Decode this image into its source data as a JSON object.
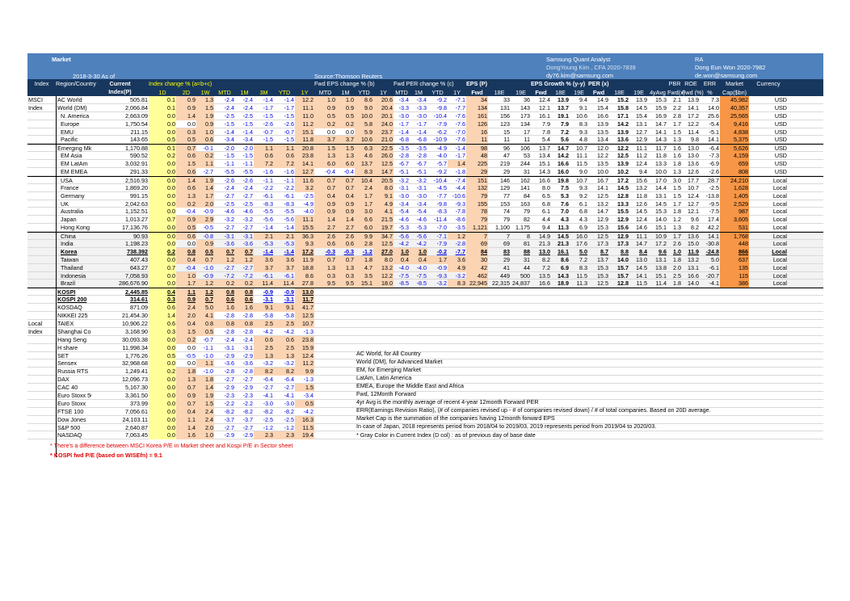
{
  "header": {
    "title": "Market",
    "as_of": "2018-3-30 As of",
    "source": "Source:Thomson Reuters",
    "analyst_title": "Samsung Quant Analyst",
    "analyst_name": "DongYoung Kim , CFA 2020-7839",
    "analyst_email": "dy76.kim@samsung.com",
    "ra_title": "RA",
    "ra_name": "Dong Eun Won 2020-7982",
    "ra_email": "de.won@samsung.com"
  },
  "columns": {
    "index": "Index",
    "region": "Region/Country",
    "current": "Current",
    "current2": "Index(P)",
    "idx_chg": "Index change % (a=b+c)",
    "eps_chg": "Fwd EPS change % (b)",
    "per_chg": "Fwd PER change % (c)",
    "eps": "EPS (P)",
    "eps_growth": "EPS Growth % (y-y)",
    "per": "PER (x)",
    "pbr": "PBR",
    "roe": "ROE",
    "err": "ERR",
    "mcap": "Market",
    "cur": "Currency",
    "pbr2": "Fwd(x)",
    "roe2": "Fwd (%)",
    "err2": "%",
    "mcap2": "Cap($bn)",
    "sub_idx": [
      "1D",
      "2D",
      "1W",
      "MTD",
      "1M",
      "3M",
      "YTD",
      "1Y"
    ],
    "sub_eps": [
      "MTD",
      "1M",
      "YTD",
      "1Y"
    ],
    "sub_per": [
      "MTD",
      "1M",
      "YTD",
      "1Y"
    ],
    "sub_epsp": [
      "Fwd",
      "18E",
      "19E"
    ],
    "sub_gr": [
      "Fwd",
      "18E",
      "19E"
    ],
    "sub_pe": [
      "Fwd",
      "18E",
      "19E",
      "4yAvg"
    ]
  },
  "groups": [
    {
      "row": 0,
      "label": "MSCI"
    },
    {
      "row": 1,
      "label": "Index"
    },
    {
      "row": 28,
      "label": "Local"
    },
    {
      "row": 29,
      "label": "Index"
    }
  ],
  "rows": [
    [
      "AC World",
      "505.81",
      "0.1",
      "0.9",
      "1.3",
      "-2.4",
      "-2.4",
      "-1.4",
      "-1.4",
      "12.2",
      "1.0",
      "1.0",
      "8.6",
      "20.6",
      "-3.4",
      "-3.4",
      "-9.2",
      "-7.1",
      "34",
      "33",
      "36",
      "12.4",
      "13.9",
      "9.4",
      "14.9",
      "15.2",
      "13.9",
      "15.3",
      "2.1",
      "13.9",
      "7.3",
      "45,982",
      "USD"
    ],
    [
      "World (DM)",
      "2,066.84",
      "0.1",
      "0.9",
      "1.5",
      "-2.4",
      "-2.4",
      "-1.7",
      "-1.7",
      "11.1",
      "0.9",
      "0.9",
      "9.0",
      "20.4",
      "-3.3",
      "-3.3",
      "-9.8",
      "-7.7",
      "134",
      "131",
      "143",
      "12.1",
      "13.7",
      "9.1",
      "15.4",
      "15.8",
      "14.5",
      "15.9",
      "2.2",
      "14.1",
      "14.0",
      "40,357",
      "USD"
    ],
    [
      "N. America",
      "2,663.09",
      "0.0",
      "1.4",
      "1.9",
      "-2.5",
      "-2.5",
      "-1.5",
      "-1.5",
      "11.0",
      "0.5",
      "0.5",
      "10.0",
      "20.1",
      "-3.0",
      "-3.0",
      "-10.4",
      "-7.6",
      "161",
      "156",
      "173",
      "16.1",
      "19.1",
      "10.6",
      "16.6",
      "17.1",
      "15.4",
      "16.9",
      "2.8",
      "17.2",
      "25.6",
      "25,565",
      "USD"
    ],
    [
      "Europe",
      "1,750.54",
      "0.0",
      "0.0",
      "0.9",
      "-1.5",
      "-1.5",
      "-2.6",
      "-2.6",
      "11.2",
      "0.2",
      "0.2",
      "5.8",
      "24.0",
      "-1.7",
      "-1.7",
      "-7.9",
      "-7.6",
      "126",
      "123",
      "134",
      "7.9",
      "7.9",
      "8.3",
      "13.9",
      "14.2",
      "13.1",
      "14.7",
      "1.7",
      "12.2",
      "-5.4",
      "9,416",
      "USD"
    ],
    [
      "EMU",
      "211.15",
      "0.0",
      "0.3",
      "1.0",
      "-1.4",
      "-1.4",
      "-0.7",
      "-0.7",
      "15.1",
      "0.0",
      "0.0",
      "5.9",
      "23.7",
      "-1.4",
      "-1.4",
      "-6.2",
      "-7.0",
      "16",
      "15",
      "17",
      "7.8",
      "7.2",
      "9.3",
      "13.5",
      "13.9",
      "12.7",
      "14.1",
      "1.5",
      "11.4",
      "-5.1",
      "4,838",
      "USD"
    ],
    [
      "Pacific",
      "143.65",
      "0.5",
      "0.5",
      "0.6",
      "-3.4",
      "-3.4",
      "-1.5",
      "-1.5",
      "11.8",
      "3.7",
      "3.7",
      "10.6",
      "21.0",
      "-6.8",
      "-6.8",
      "-10.9",
      "-7.6",
      "11",
      "11",
      "11",
      "5.4",
      "5.6",
      "4.8",
      "13.4",
      "13.6",
      "12.9",
      "14.3",
      "1.3",
      "9.8",
      "14.1",
      "5,375",
      "USD"
    ],
    [
      "Emerging Mkt",
      "1,170.88",
      "0.1",
      "0.7",
      "-0.1",
      "-2.0",
      "-2.0",
      "1.1",
      "1.1",
      "20.8",
      "1.5",
      "1.5",
      "6.3",
      "22.5",
      "-3.5",
      "-3.5",
      "-4.9",
      "-1.4",
      "98",
      "96",
      "106",
      "13.7",
      "14.7",
      "10.7",
      "12.0",
      "12.2",
      "11.1",
      "11.7",
      "1.6",
      "13.0",
      "-6.4",
      "5,626",
      "USD"
    ],
    [
      "EM Asia",
      "590.52",
      "0.2",
      "0.6",
      "0.2",
      "-1.5",
      "-1.5",
      "0.6",
      "0.6",
      "23.8",
      "1.3",
      "1.3",
      "4.6",
      "26.0",
      "-2.8",
      "-2.8",
      "-4.0",
      "-1.7",
      "48",
      "47",
      "53",
      "13.4",
      "14.2",
      "11.1",
      "12.2",
      "12.5",
      "11.2",
      "11.8",
      "1.6",
      "13.0",
      "-7.3",
      "4,159",
      "USD"
    ],
    [
      "EM LatAm",
      "3,032.91",
      "0.0",
      "1.5",
      "1.1",
      "-1.1",
      "-1.1",
      "7.2",
      "7.2",
      "14.1",
      "6.0",
      "6.0",
      "13.7",
      "12.5",
      "-6.7",
      "-6.7",
      "-5.7",
      "1.4",
      "225",
      "219",
      "244",
      "15.1",
      "16.6",
      "11.5",
      "13.5",
      "13.9",
      "12.4",
      "13.3",
      "1.8",
      "13.6",
      "-6.9",
      "659",
      "USD"
    ],
    [
      "EM EMEA",
      "291.33",
      "0.0",
      "0.6",
      "-2.7",
      "-5.5",
      "-5.5",
      "-1.6",
      "-1.6",
      "12.7",
      "-0.4",
      "-0.4",
      "8.3",
      "14.7",
      "-5.1",
      "-5.1",
      "-9.2",
      "-1.8",
      "29",
      "29",
      "31",
      "14.3",
      "16.0",
      "9.0",
      "10.0",
      "10.2",
      "9.4",
      "10.0",
      "1.3",
      "12.6",
      "-2.6",
      "808",
      "USD"
    ],
    [
      "USA",
      "2,516.93",
      "0.0",
      "1.4",
      "1.9",
      "-2.6",
      "-2.6",
      "-1.1",
      "-1.1",
      "11.6",
      "0.7",
      "0.7",
      "10.4",
      "20.5",
      "-3.2",
      "-3.2",
      "-10.4",
      "-7.4",
      "151",
      "146",
      "162",
      "16.6",
      "19.8",
      "10.7",
      "16.7",
      "17.2",
      "15.6",
      "17.0",
      "3.0",
      "17.7",
      "28.7",
      "24,210",
      "Local"
    ],
    [
      "France",
      "1,869.20",
      "0.0",
      "0.6",
      "1.4",
      "-2.4",
      "-2.4",
      "-2.2",
      "-2.2",
      "3.2",
      "0.7",
      "0.7",
      "2.4",
      "8.0",
      "-3.1",
      "-3.1",
      "-4.5",
      "-4.4",
      "132",
      "129",
      "141",
      "8.0",
      "7.5",
      "9.3",
      "14.1",
      "14.5",
      "13.2",
      "14.4",
      "1.5",
      "10.7",
      "-2.5",
      "1,628",
      "Local"
    ],
    [
      "Germany",
      "991.15",
      "0.0",
      "1.3",
      "1.7",
      "-2.7",
      "-2.7",
      "-6.1",
      "-6.1",
      "-2.5",
      "0.4",
      "0.4",
      "1.7",
      "9.1",
      "-3.0",
      "-3.0",
      "-7.7",
      "-10.6",
      "79",
      "77",
      "84",
      "6.5",
      "5.3",
      "9.2",
      "12.5",
      "12.8",
      "11.8",
      "13.1",
      "1.5",
      "12.4",
      "-13.8",
      "1,405",
      "Local"
    ],
    [
      "UK",
      "2,042.63",
      "0.0",
      "0.2",
      "2.0",
      "-2.5",
      "-2.5",
      "-8.3",
      "-8.3",
      "-4.9",
      "0.9",
      "0.9",
      "1.7",
      "4.9",
      "-3.4",
      "-3.4",
      "-9.8",
      "-9.3",
      "155",
      "153",
      "163",
      "6.8",
      "7.6",
      "6.1",
      "13.2",
      "13.3",
      "12.6",
      "14.5",
      "1.7",
      "12.7",
      "-9.5",
      "2,529",
      "Local"
    ],
    [
      "Australia",
      "1,152.51",
      "0.0",
      "-0.4",
      "-0.9",
      "-4.6",
      "-4.6",
      "-5.5",
      "-5.5",
      "-4.0",
      "0.9",
      "0.9",
      "3.0",
      "4.1",
      "-5.4",
      "-5.4",
      "-8.3",
      "-7.8",
      "78",
      "74",
      "79",
      "6.1",
      "7.0",
      "6.8",
      "14.7",
      "15.5",
      "14.5",
      "15.3",
      "1.8",
      "12.1",
      "-7.5",
      "987",
      "Local"
    ],
    [
      "Japan",
      "1,013.27",
      "0.7",
      "0.9",
      "2.9",
      "-3.2",
      "-3.2",
      "-5.6",
      "-5.6",
      "11.1",
      "1.4",
      "1.4",
      "6.6",
      "21.5",
      "-4.6",
      "-4.6",
      "-11.4",
      "-8.6",
      "79",
      "79",
      "82",
      "4.4",
      "4.3",
      "4.3",
      "12.9",
      "12.9",
      "12.4",
      "14.0",
      "1.2",
      "9.6",
      "17.4",
      "3,605",
      "Local"
    ],
    [
      "Hong Kong",
      "17,136.76",
      "0.0",
      "0.5",
      "-0.5",
      "-2.7",
      "-2.7",
      "-1.4",
      "-1.4",
      "15.5",
      "2.7",
      "2.7",
      "6.0",
      "19.7",
      "-5.3",
      "-5.3",
      "-7.0",
      "-3.5",
      "1,121",
      "1,100",
      "1,175",
      "9.4",
      "11.3",
      "6.9",
      "15.3",
      "15.6",
      "14.6",
      "15.1",
      "1.3",
      "8.2",
      "42.2",
      "531",
      "Local"
    ],
    [
      "China",
      "90.93",
      "0.0",
      "0.6",
      "-0.8",
      "-3.1",
      "-3.1",
      "2.1",
      "2.1",
      "36.3",
      "2.6",
      "2.6",
      "9.9",
      "34.7",
      "-5.6",
      "-5.6",
      "-7.1",
      "1.2",
      "7",
      "7",
      "8",
      "14.9",
      "14.5",
      "16.0",
      "12.5",
      "12.9",
      "11.1",
      "10.9",
      "1.7",
      "13.6",
      "14.1",
      "1,768",
      "Local"
    ],
    [
      "India",
      "1,198.23",
      "0.0",
      "0.0",
      "0.9",
      "-3.6",
      "-3.6",
      "-5.3",
      "-5.3",
      "9.3",
      "0.6",
      "0.6",
      "2.8",
      "12.5",
      "-4.2",
      "-4.2",
      "-7.9",
      "-2.8",
      "69",
      "69",
      "81",
      "21.3",
      "21.3",
      "17.6",
      "17.3",
      "17.3",
      "14.7",
      "17.2",
      "2.6",
      "15.0",
      "-30.8",
      "448",
      "Local"
    ],
    [
      "Korea",
      "738.392",
      "0.2",
      "0.8",
      "0.5",
      "0.7",
      "0.7",
      "-1.4",
      "-1.4",
      "17.2",
      "-0.3",
      "-0.3",
      "-1.2",
      "27.0",
      "1.0",
      "1.0",
      "-0.2",
      "-7.7",
      "84",
      "83",
      "88",
      "13.0",
      "16.1",
      "5.0",
      "8.7",
      "8.8",
      "8.4",
      "9.6",
      "1.0",
      "11.9",
      "-24.8",
      "866",
      "Local"
    ],
    [
      "Taiwan",
      "407.43",
      "0.0",
      "0.4",
      "0.7",
      "1.2",
      "1.2",
      "3.6",
      "3.6",
      "11.9",
      "0.7",
      "0.7",
      "1.8",
      "8.0",
      "0.4",
      "0.4",
      "1.7",
      "3.6",
      "30",
      "29",
      "31",
      "8.2",
      "8.6",
      "7.2",
      "13.7",
      "14.0",
      "13.0",
      "13.1",
      "1.8",
      "13.2",
      "5.0",
      "637",
      "Local"
    ],
    [
      "Thailand",
      "643.27",
      "0.7",
      "-0.4",
      "-1.0",
      "-2.7",
      "-2.7",
      "3.7",
      "3.7",
      "18.8",
      "1.3",
      "1.3",
      "4.7",
      "13.2",
      "-4.0",
      "-4.0",
      "-0.9",
      "4.9",
      "42",
      "41",
      "44",
      "7.2",
      "6.9",
      "8.3",
      "15.3",
      "15.7",
      "14.5",
      "13.8",
      "2.0",
      "13.1",
      "-6.1",
      "135",
      "Local"
    ],
    [
      "Indonesia",
      "7,058.93",
      "0.0",
      "1.0",
      "-0.9",
      "-7.2",
      "-7.2",
      "-6.1",
      "-6.1",
      "8.6",
      "0.3",
      "0.3",
      "3.5",
      "12.2",
      "-7.5",
      "-7.5",
      "-9.3",
      "-3.2",
      "462",
      "449",
      "500",
      "13.5",
      "14.3",
      "11.5",
      "15.3",
      "15.7",
      "14.1",
      "15.1",
      "2.5",
      "16.6",
      "-20.7",
      "115",
      "Local"
    ],
    [
      "Brazil",
      "286,676.90",
      "0.0",
      "1.7",
      "1.2",
      "0.2",
      "0.2",
      "11.4",
      "11.4",
      "27.8",
      "9.5",
      "9.5",
      "15.1",
      "18.0",
      "-8.5",
      "-8.5",
      "-3.2",
      "8.3",
      "22,945",
      "22,315",
      "24,837",
      "16.6",
      "18.9",
      "11.3",
      "12.5",
      "12.8",
      "11.5",
      "11.4",
      "1.8",
      "14.0",
      "-4.1",
      "386",
      "Local"
    ],
    [
      "KOSPI",
      "2,445.85",
      "0.4",
      "1.1",
      "1.2",
      "0.8",
      "0.8",
      "-0.9",
      "-0.9",
      "13.0"
    ],
    [
      "KOSPI 200",
      "314.61",
      "0.3",
      "0.9",
      "0.7",
      "0.6",
      "0.6",
      "-3.1",
      "-3.1",
      "11.7"
    ],
    [
      "KOSDAQ",
      "871.09",
      "0.6",
      "2.4",
      "5.0",
      "1.6",
      "1.6",
      "9.1",
      "9.1",
      "41.7"
    ],
    [
      "NIKKEI 225",
      "21,454.30",
      "1.4",
      "2.0",
      "4.1",
      "-2.8",
      "-2.8",
      "-5.8",
      "-5.8",
      "12.5"
    ],
    [
      "TAIEX",
      "10,906.22",
      "0.6",
      "0.4",
      "0.8",
      "0.8",
      "0.8",
      "2.5",
      "2.5",
      "10.7"
    ],
    [
      "Shanghai Comp",
      "3,168.90",
      "0.3",
      "1.5",
      "0.5",
      "-2.8",
      "-2.8",
      "-4.2",
      "-4.2",
      "-1.3"
    ],
    [
      "Hang Seng",
      "30,093.38",
      "0.0",
      "0.2",
      "-0.7",
      "-2.4",
      "-2.4",
      "0.6",
      "0.6",
      "23.8"
    ],
    [
      "H share",
      "11,998.34",
      "0.0",
      "0.0",
      "-1.1",
      "-3.1",
      "-3.1",
      "2.5",
      "2.5",
      "15.9"
    ],
    [
      "SET",
      "1,776.26",
      "0.5",
      "-0.5",
      "-1.0",
      "-2.9",
      "-2.9",
      "1.3",
      "1.3",
      "12.4"
    ],
    [
      "Sensex",
      "32,968.68",
      "0.0",
      "0.0",
      "1.1",
      "-3.6",
      "-3.6",
      "-3.2",
      "-3.2",
      "11.2"
    ],
    [
      "Russia RTS",
      "1,249.41",
      "0.2",
      "1.8",
      "-1.0",
      "-2.8",
      "-2.8",
      "8.2",
      "8.2",
      "9.9"
    ],
    [
      "DAX",
      "12,096.73",
      "0.0",
      "1.3",
      "1.8",
      "-2.7",
      "-2.7",
      "-6.4",
      "-6.4",
      "-1.3"
    ],
    [
      "CAC 40",
      "5,167.30",
      "0.0",
      "0.7",
      "1.4",
      "-2.9",
      "-2.9",
      "-2.7",
      "-2.7",
      "1.5"
    ],
    [
      "Euro Stoxx 50",
      "3,361.50",
      "0.0",
      "0.9",
      "1.9",
      "-2.3",
      "-2.3",
      "-4.1",
      "-4.1",
      "-3.4"
    ],
    [
      "Euro Stoxx",
      "373.99",
      "0.0",
      "0.7",
      "1.5",
      "-2.2",
      "-2.2",
      "-3.0",
      "-3.0",
      "0.5"
    ],
    [
      "FTSE 100",
      "7,056.61",
      "0.0",
      "0.4",
      "2.4",
      "-8.2",
      "-8.2",
      "-8.2",
      "-8.2",
      "-4.2"
    ],
    [
      "Dow Jones",
      "24,103.11",
      "0.0",
      "1.1",
      "2.4",
      "-3.7",
      "-3.7",
      "-2.5",
      "-2.5",
      "16.3"
    ],
    [
      "S&P 500",
      "2,640.87",
      "0.0",
      "1.4",
      "2.0",
      "-2.7",
      "-2.7",
      "-1.2",
      "-1.2",
      "11.5"
    ],
    [
      "NASDAQ",
      "7,063.45",
      "0.0",
      "1.6",
      "1.0",
      "-2.9",
      "-2.9",
      "2.3",
      "2.3",
      "19.4"
    ]
  ],
  "notes": [
    "AC World, for All Country",
    "World (DM), for Advanced Market",
    "EM, for Emerging Market",
    "LatAm, Latin America",
    "EMEA, Europe the Middle East and Africa",
    "Fwd, 12Month Forward",
    "4yr Avg is the monthly average of recent 4-year 12month Forward PER",
    "ERR(Earnings Revision Ratio), (# of companies revised up - # of companies revised down) / # of total companies. Based on 20D average.",
    "Market Cap is the summation of the companies having 12month forward EPS",
    "In case of Japan, 2018 represents period from 2018/04 to 2019/03, 2019 represents period from 2019/04 to 2020/03.",
    "* Gray Color in Current Index (D col) : as of previous day of base date"
  ],
  "footnotes": [
    "* There's a difference between MSCI Korea P/E in Market sheet and Kospi P/E in Sector sheet",
    "* KOSPI fwd P/E (based on WISEfn) = 9.1"
  ],
  "colors": {
    "header_blue": "#4f81bd",
    "col_header_navy": "#17375e",
    "up_orange": "#fbd4b4",
    "strong_orange": "#f79646",
    "current_yellow": "#ffff99",
    "negative_red": "#e00000",
    "positive_blue": "#0000e0"
  }
}
